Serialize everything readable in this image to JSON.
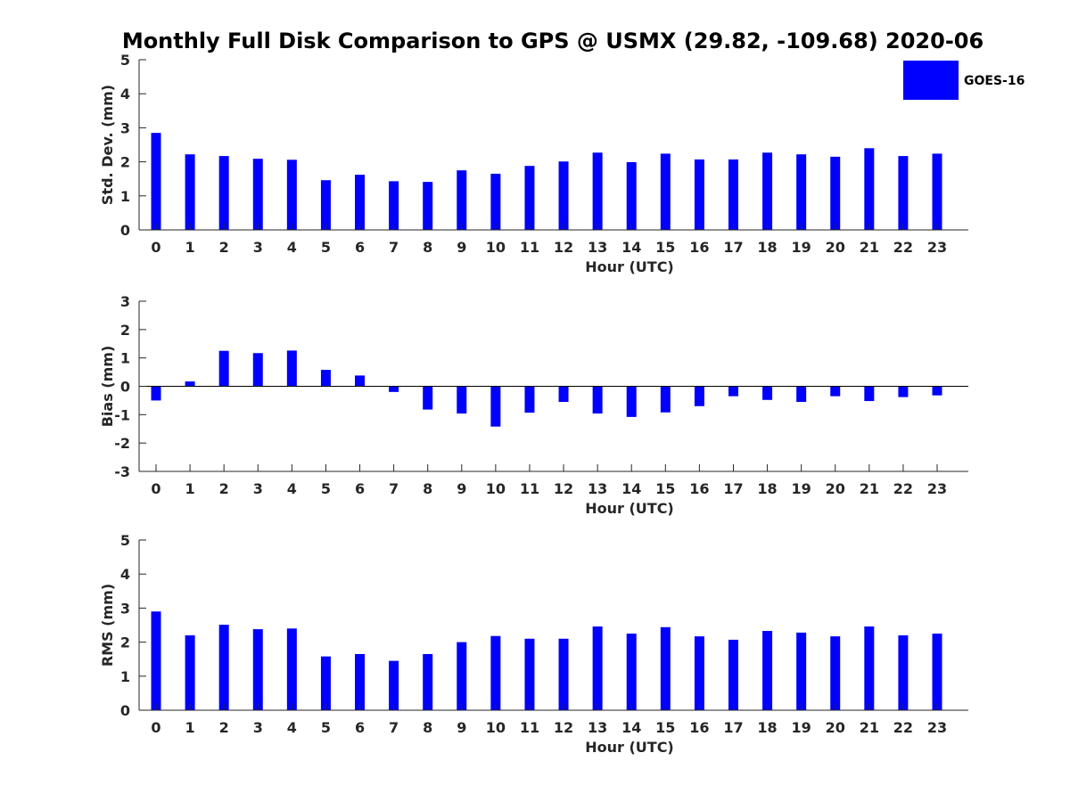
{
  "title": "Monthly Full Disk Comparison to GPS @ USMX (29.82, -109.68) 2020-06",
  "series_color": "#0000ff",
  "chart_data": [
    {
      "type": "bar",
      "xlabel": "Hour (UTC)",
      "ylabel": "Std. Dev. (mm)",
      "ylim": [
        0,
        5
      ],
      "yticks": [
        0,
        1,
        2,
        3,
        4,
        5
      ],
      "categories": [
        "0",
        "1",
        "2",
        "3",
        "4",
        "5",
        "6",
        "7",
        "8",
        "9",
        "10",
        "11",
        "12",
        "13",
        "14",
        "15",
        "16",
        "17",
        "18",
        "19",
        "20",
        "21",
        "22",
        "23"
      ],
      "series": [
        {
          "name": "GOES-16",
          "values": [
            2.85,
            2.22,
            2.17,
            2.09,
            2.06,
            1.46,
            1.62,
            1.43,
            1.41,
            1.75,
            1.65,
            1.88,
            2.01,
            2.27,
            1.99,
            2.24,
            2.07,
            2.07,
            2.27,
            2.22,
            2.15,
            2.4,
            2.17,
            2.24
          ]
        }
      ],
      "legend": "top-right"
    },
    {
      "type": "bar",
      "xlabel": "Hour (UTC)",
      "ylabel": "Bias (mm)",
      "ylim": [
        -3,
        3
      ],
      "yticks": [
        -3,
        -2,
        -1,
        0,
        1,
        2,
        3
      ],
      "categories": [
        "0",
        "1",
        "2",
        "3",
        "4",
        "5",
        "6",
        "7",
        "8",
        "9",
        "10",
        "11",
        "12",
        "13",
        "14",
        "15",
        "16",
        "17",
        "18",
        "19",
        "20",
        "21",
        "22",
        "23"
      ],
      "series": [
        {
          "name": "GOES-16",
          "values": [
            -0.5,
            0.17,
            1.25,
            1.17,
            1.26,
            0.58,
            0.38,
            -0.2,
            -0.82,
            -0.96,
            -1.42,
            -0.93,
            -0.55,
            -0.96,
            -1.08,
            -0.92,
            -0.7,
            -0.35,
            -0.48,
            -0.55,
            -0.35,
            -0.52,
            -0.38,
            -0.32
          ]
        }
      ]
    },
    {
      "type": "bar",
      "xlabel": "Hour (UTC)",
      "ylabel": "RMS (mm)",
      "ylim": [
        0,
        5
      ],
      "yticks": [
        0,
        1,
        2,
        3,
        4,
        5
      ],
      "categories": [
        "0",
        "1",
        "2",
        "3",
        "4",
        "5",
        "6",
        "7",
        "8",
        "9",
        "10",
        "11",
        "12",
        "13",
        "14",
        "15",
        "16",
        "17",
        "18",
        "19",
        "20",
        "21",
        "22",
        "23"
      ],
      "series": [
        {
          "name": "GOES-16",
          "values": [
            2.9,
            2.2,
            2.51,
            2.38,
            2.4,
            1.58,
            1.65,
            1.45,
            1.65,
            2.0,
            2.18,
            2.1,
            2.1,
            2.46,
            2.25,
            2.44,
            2.17,
            2.07,
            2.33,
            2.28,
            2.17,
            2.46,
            2.2,
            2.25
          ]
        }
      ]
    }
  ]
}
